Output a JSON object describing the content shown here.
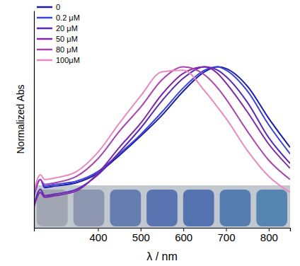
{
  "chart_data": {
    "type": "line",
    "x_label": "λ / nm",
    "y_label": "Normalized Abs",
    "x": [
      250,
      265,
      275,
      300,
      350,
      400,
      450,
      500,
      550,
      600,
      650,
      680,
      700,
      750,
      800,
      850
    ],
    "series": [
      {
        "name": "0",
        "color": "#1c1ca8",
        "values": [
          0.2,
          0.3,
          0.25,
          0.26,
          0.28,
          0.34,
          0.45,
          0.57,
          0.7,
          0.85,
          0.97,
          1.0,
          0.99,
          0.88,
          0.68,
          0.5
        ]
      },
      {
        "name": "0.2 μM",
        "color": "#3a44d6",
        "values": [
          0.2,
          0.3,
          0.26,
          0.27,
          0.29,
          0.35,
          0.46,
          0.58,
          0.72,
          0.87,
          0.98,
          1.0,
          0.98,
          0.85,
          0.64,
          0.46
        ]
      },
      {
        "name": "20 μM",
        "color": "#5a2ab8",
        "values": [
          0.14,
          0.24,
          0.2,
          0.21,
          0.24,
          0.33,
          0.47,
          0.62,
          0.79,
          0.93,
          1.0,
          0.98,
          0.94,
          0.78,
          0.56,
          0.4
        ]
      },
      {
        "name": "50 μM",
        "color": "#8028a8",
        "values": [
          0.13,
          0.22,
          0.19,
          0.2,
          0.23,
          0.34,
          0.5,
          0.65,
          0.83,
          0.96,
          1.0,
          0.96,
          0.9,
          0.72,
          0.52,
          0.37
        ]
      },
      {
        "name": "80 μM",
        "color": "#a844b0",
        "values": [
          0.2,
          0.3,
          0.27,
          0.28,
          0.32,
          0.43,
          0.6,
          0.75,
          0.92,
          1.0,
          0.95,
          0.87,
          0.8,
          0.6,
          0.42,
          0.3
        ]
      },
      {
        "name": "100μM",
        "color": "#e889c0",
        "values": [
          0.23,
          0.33,
          0.3,
          0.31,
          0.35,
          0.47,
          0.65,
          0.82,
          0.97,
          0.98,
          0.85,
          0.75,
          0.68,
          0.48,
          0.32,
          0.22
        ]
      }
    ],
    "xlim": [
      250,
      850
    ],
    "xticks": [
      400,
      500,
      600,
      700,
      800
    ],
    "ylim": [
      0,
      1.35
    ],
    "tick_labels": "x",
    "legend": "upper left",
    "grid": false
  }
}
